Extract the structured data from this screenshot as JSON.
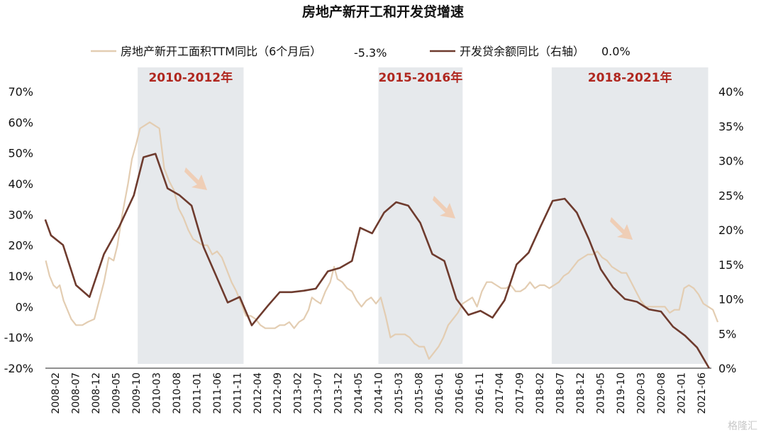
{
  "colors": {
    "series1": "#e3cdb2",
    "series2": "#6e3b2e",
    "band": "#e6e9ec",
    "bandLabel": "#b0271f",
    "arrow": "#f0c9ad"
  },
  "watermark": "格隆汇",
  "chart_data": {
    "type": "line",
    "title": "房地产新开工和开发贷增速",
    "grid": false,
    "legend_position": "top",
    "x_labels": [
      "2008-02",
      "2008-07",
      "2008-12",
      "2009-05",
      "2009-10",
      "2010-03",
      "2010-08",
      "2011-01",
      "2011-06",
      "2011-11",
      "2012-04",
      "2012-09",
      "2013-02",
      "2013-07",
      "2013-12",
      "2014-05",
      "2014-10",
      "2015-03",
      "2015-08",
      "2016-01",
      "2016-06",
      "2016-11",
      "2017-04",
      "2017-09",
      "2018-02",
      "2018-07",
      "2018-12",
      "2019-05",
      "2019-10",
      "2020-03",
      "2020-08",
      "2021-01",
      "2021-06"
    ],
    "y_left": {
      "min": -20,
      "max": 70,
      "ticks": [
        "-20%",
        "-10%",
        "0%",
        "10%",
        "20%",
        "30%",
        "40%",
        "50%",
        "60%",
        "70%"
      ]
    },
    "y_right": {
      "min": 0,
      "max": 40,
      "ticks": [
        "0%",
        "5%",
        "10%",
        "15%",
        "20%",
        "25%",
        "30%",
        "35%",
        "40%"
      ]
    },
    "bands": [
      {
        "label": "2010-2012年",
        "from": 2010.0,
        "to": 2012.2
      },
      {
        "label": "2015-2016年",
        "from": 2015.0,
        "to": 2016.75
      },
      {
        "label": "2018-2021年",
        "from": 2018.6,
        "to": 2021.85
      }
    ],
    "series": [
      {
        "name": "房地产新开工面积TTM同比（6个月后）",
        "latest_label": "-5.3%",
        "axis": "left",
        "points": [
          [
            2008.09,
            15
          ],
          [
            2008.17,
            10
          ],
          [
            2008.25,
            7
          ],
          [
            2008.32,
            6
          ],
          [
            2008.38,
            7
          ],
          [
            2008.46,
            2
          ],
          [
            2008.54,
            -1
          ],
          [
            2008.62,
            -4
          ],
          [
            2008.72,
            -6
          ],
          [
            2008.85,
            -6
          ],
          [
            2008.96,
            -5
          ],
          [
            2009.1,
            -4
          ],
          [
            2009.2,
            2
          ],
          [
            2009.3,
            8
          ],
          [
            2009.4,
            16
          ],
          [
            2009.5,
            15
          ],
          [
            2009.58,
            20
          ],
          [
            2009.68,
            30
          ],
          [
            2009.8,
            40
          ],
          [
            2009.88,
            48
          ],
          [
            2009.97,
            53
          ],
          [
            2010.05,
            58
          ],
          [
            2010.15,
            59
          ],
          [
            2010.25,
            60
          ],
          [
            2010.35,
            59
          ],
          [
            2010.45,
            58
          ],
          [
            2010.55,
            45
          ],
          [
            2010.65,
            41
          ],
          [
            2010.75,
            38
          ],
          [
            2010.85,
            32
          ],
          [
            2010.95,
            29
          ],
          [
            2011.05,
            25
          ],
          [
            2011.15,
            22
          ],
          [
            2011.25,
            21
          ],
          [
            2011.35,
            20
          ],
          [
            2011.45,
            20
          ],
          [
            2011.55,
            17
          ],
          [
            2011.65,
            18
          ],
          [
            2011.75,
            16
          ],
          [
            2011.85,
            12
          ],
          [
            2011.95,
            8
          ],
          [
            2012.05,
            5
          ],
          [
            2012.15,
            1
          ],
          [
            2012.25,
            -3
          ],
          [
            2012.35,
            -3
          ],
          [
            2012.45,
            -4
          ],
          [
            2012.55,
            -6
          ],
          [
            2012.65,
            -7
          ],
          [
            2012.75,
            -7
          ],
          [
            2012.85,
            -7
          ],
          [
            2012.95,
            -6
          ],
          [
            2013.05,
            -6
          ],
          [
            2013.15,
            -5
          ],
          [
            2013.25,
            -7
          ],
          [
            2013.35,
            -5
          ],
          [
            2013.45,
            -4
          ],
          [
            2013.55,
            -1
          ],
          [
            2013.62,
            3
          ],
          [
            2013.7,
            2
          ],
          [
            2013.8,
            1
          ],
          [
            2013.9,
            5
          ],
          [
            2014.0,
            8
          ],
          [
            2014.08,
            13
          ],
          [
            2014.15,
            9
          ],
          [
            2014.25,
            8
          ],
          [
            2014.35,
            6
          ],
          [
            2014.45,
            5
          ],
          [
            2014.55,
            2
          ],
          [
            2014.65,
            0
          ],
          [
            2014.75,
            2
          ],
          [
            2014.85,
            3
          ],
          [
            2014.95,
            1
          ],
          [
            2015.05,
            3
          ],
          [
            2015.15,
            -3
          ],
          [
            2015.25,
            -10
          ],
          [
            2015.35,
            -9
          ],
          [
            2015.45,
            -9
          ],
          [
            2015.55,
            -9
          ],
          [
            2015.65,
            -10
          ],
          [
            2015.75,
            -12
          ],
          [
            2015.85,
            -13
          ],
          [
            2015.95,
            -13
          ],
          [
            2016.05,
            -17
          ],
          [
            2016.15,
            -15
          ],
          [
            2016.25,
            -13
          ],
          [
            2016.35,
            -10
          ],
          [
            2016.45,
            -6
          ],
          [
            2016.55,
            -4
          ],
          [
            2016.65,
            -2
          ],
          [
            2016.75,
            1
          ],
          [
            2016.85,
            2
          ],
          [
            2016.95,
            3
          ],
          [
            2017.05,
            0
          ],
          [
            2017.15,
            5
          ],
          [
            2017.25,
            8
          ],
          [
            2017.35,
            8
          ],
          [
            2017.45,
            7
          ],
          [
            2017.55,
            6
          ],
          [
            2017.65,
            6
          ],
          [
            2017.75,
            7
          ],
          [
            2017.85,
            5
          ],
          [
            2017.95,
            5
          ],
          [
            2018.05,
            6
          ],
          [
            2018.15,
            8
          ],
          [
            2018.25,
            6
          ],
          [
            2018.35,
            7
          ],
          [
            2018.45,
            7
          ],
          [
            2018.55,
            6
          ],
          [
            2018.65,
            7
          ],
          [
            2018.75,
            8
          ],
          [
            2018.85,
            10
          ],
          [
            2018.95,
            11
          ],
          [
            2019.05,
            13
          ],
          [
            2019.15,
            15
          ],
          [
            2019.25,
            16
          ],
          [
            2019.35,
            17
          ],
          [
            2019.45,
            17
          ],
          [
            2019.55,
            18
          ],
          [
            2019.65,
            16
          ],
          [
            2019.75,
            15
          ],
          [
            2019.85,
            13
          ],
          [
            2019.95,
            12
          ],
          [
            2020.05,
            11
          ],
          [
            2020.15,
            11
          ],
          [
            2020.25,
            8
          ],
          [
            2020.35,
            5
          ],
          [
            2020.45,
            2
          ],
          [
            2020.55,
            0
          ],
          [
            2020.65,
            0
          ],
          [
            2020.75,
            0
          ],
          [
            2020.85,
            0
          ],
          [
            2020.95,
            0
          ],
          [
            2021.05,
            -2
          ],
          [
            2021.15,
            -1
          ],
          [
            2021.25,
            -1
          ],
          [
            2021.35,
            6
          ],
          [
            2021.45,
            7
          ],
          [
            2021.55,
            6
          ],
          [
            2021.65,
            4
          ],
          [
            2021.75,
            1
          ],
          [
            2021.85,
            0
          ],
          [
            2021.95,
            -1
          ],
          [
            2022.05,
            -5
          ]
        ]
      },
      {
        "name": "开发贷余额同比（右轴）",
        "latest_label": "0.0%",
        "axis": "right",
        "points": [
          [
            2008.08,
            21.5
          ],
          [
            2008.2,
            19.2
          ],
          [
            2008.45,
            17.8
          ],
          [
            2008.72,
            12
          ],
          [
            2009.0,
            10.3
          ],
          [
            2009.3,
            16.5
          ],
          [
            2009.62,
            20.5
          ],
          [
            2009.92,
            25
          ],
          [
            2010.12,
            30.5
          ],
          [
            2010.37,
            31
          ],
          [
            2010.62,
            26
          ],
          [
            2010.87,
            25
          ],
          [
            2011.12,
            23.5
          ],
          [
            2011.37,
            17.5
          ],
          [
            2011.62,
            13.5
          ],
          [
            2011.87,
            9.5
          ],
          [
            2012.12,
            10.3
          ],
          [
            2012.37,
            6.2
          ],
          [
            2012.7,
            9
          ],
          [
            2012.95,
            11
          ],
          [
            2013.2,
            11
          ],
          [
            2013.45,
            11.2
          ],
          [
            2013.7,
            11.5
          ],
          [
            2013.95,
            14
          ],
          [
            2014.2,
            14.5
          ],
          [
            2014.45,
            15.5
          ],
          [
            2014.62,
            20.3
          ],
          [
            2014.87,
            19.5
          ],
          [
            2015.12,
            22.5
          ],
          [
            2015.37,
            24
          ],
          [
            2015.62,
            23.5
          ],
          [
            2015.87,
            21
          ],
          [
            2016.12,
            16.5
          ],
          [
            2016.37,
            15.5
          ],
          [
            2016.62,
            10
          ],
          [
            2016.87,
            7.7
          ],
          [
            2017.12,
            8.3
          ],
          [
            2017.37,
            7.3
          ],
          [
            2017.62,
            9.8
          ],
          [
            2017.87,
            15
          ],
          [
            2018.12,
            16.7
          ],
          [
            2018.37,
            20.5
          ],
          [
            2018.62,
            24.2
          ],
          [
            2018.87,
            24.5
          ],
          [
            2019.12,
            22.5
          ],
          [
            2019.37,
            18.7
          ],
          [
            2019.62,
            14.3
          ],
          [
            2019.87,
            11.7
          ],
          [
            2020.12,
            10
          ],
          [
            2020.37,
            9.6
          ],
          [
            2020.62,
            8.5
          ],
          [
            2020.87,
            8.2
          ],
          [
            2021.12,
            6
          ],
          [
            2021.37,
            4.7
          ],
          [
            2021.62,
            3
          ],
          [
            2021.87,
            0
          ]
        ]
      }
    ]
  }
}
